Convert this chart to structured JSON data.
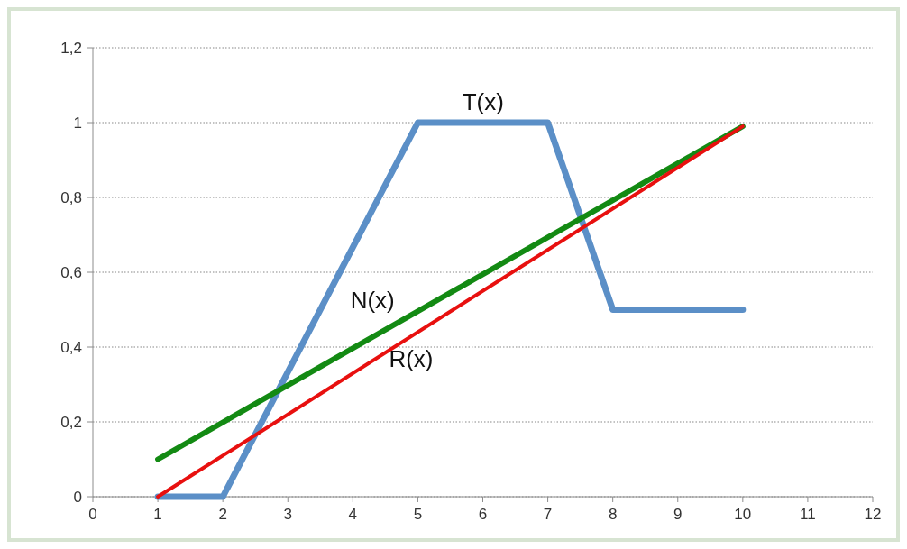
{
  "chart_data": {
    "type": "line",
    "xlim": [
      0,
      12
    ],
    "xticks": [
      0,
      1,
      2,
      3,
      4,
      5,
      6,
      7,
      8,
      9,
      10,
      11,
      12
    ],
    "ylim": [
      0,
      1.2
    ],
    "yticks": [
      0,
      {
        "value": 0.2,
        "label": "0,2"
      },
      {
        "value": 0.4,
        "label": "0,4"
      },
      {
        "value": 0.6,
        "label": "0,6"
      },
      {
        "value": 0.8,
        "label": "0,8"
      },
      1,
      {
        "value": 1.2,
        "label": "1,2"
      }
    ],
    "grid": "y",
    "marker": "none",
    "line_style": "solid",
    "series": [
      {
        "name": "T(x)",
        "color": "#5b8fc7",
        "x": [
          1,
          2,
          5,
          7,
          8,
          10
        ],
        "values": [
          0,
          0,
          1,
          1,
          0.5,
          0.5
        ]
      },
      {
        "name": "N(x)",
        "color": "#138a13",
        "x": [
          1,
          10
        ],
        "values": [
          0.1,
          0.99
        ]
      },
      {
        "name": "R(x)",
        "color": "#e8100f",
        "x": [
          1,
          10
        ],
        "values": [
          0,
          0.99
        ]
      }
    ]
  }
}
